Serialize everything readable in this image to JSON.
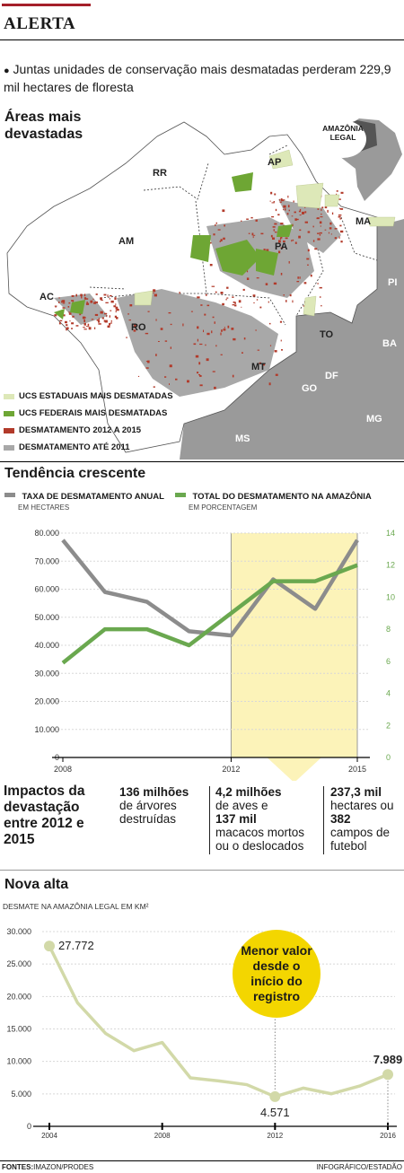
{
  "header": {
    "section": "ALERTA",
    "lede_bullet": "●",
    "lede": "Juntas unidades de conservação mais desmatadas perderam 229,9 mil hectares de floresta"
  },
  "map": {
    "title_line1": "Áreas mais",
    "title_line2": "devastadas",
    "inset_label_line1": "AMAZÔNIA",
    "inset_label_line2": "LEGAL",
    "states": [
      "RR",
      "AP",
      "AM",
      "PA",
      "MA",
      "AC",
      "PI",
      "RO",
      "TO",
      "BA",
      "MT",
      "DF",
      "GO",
      "MG",
      "MS"
    ],
    "legend": [
      {
        "label": "UCS ESTADUAIS MAIS DESMATADAS",
        "color": "#dde8b8"
      },
      {
        "label": "UCS FEDERAIS MAIS DESMATADAS",
        "color": "#6ea634"
      },
      {
        "label": "DESMATAMENTO 2012 A 2015",
        "color": "#b23a2a"
      },
      {
        "label": "DESMATAMENTO ATÉ 2011",
        "color": "#a8a8a8"
      }
    ],
    "colors": {
      "land": "#ffffff",
      "neighbors": "#9a9a9a",
      "border": "#444444"
    }
  },
  "trend": {
    "title": "Tendência crescente",
    "legend_left_label": "TAXA DE DESMATAMENTO ANUAL",
    "legend_left_sub": "EM HECTARES",
    "legend_right_label": "TOTAL DO DESMATAMENTO NA AMAZÔNIA",
    "legend_right_sub": "EM PORCENTAGEM"
  },
  "impacts": {
    "title": "Impactos da devastação entre 2012 e 2015",
    "col1_num": "136 milhões",
    "col1_text": "de árvores destruídas",
    "col2_num1": "4,2 milhões",
    "col2_text1": "de aves e",
    "col2_num2": "137 mil",
    "col2_text2": "macacos mortos ou o deslocados",
    "col3_num1": "237,3 mil",
    "col3_text1": "hectares ou",
    "col3_num2": "382",
    "col3_text2": "campos de futebol"
  },
  "alta": {
    "title": "Nova alta",
    "subtitle": "DESMATE NA AMAZÔNIA LEGAL EM KM²",
    "callout": "Menor valor desde o início do registro"
  },
  "footer": {
    "sources_label": "FONTES:",
    "sources": "IMAZON/PRODES",
    "credit": "INFOGRÁFICO/ESTADÃO"
  },
  "chart_data": [
    {
      "type": "line",
      "title": "Tendência crescente",
      "x": [
        2008,
        2009,
        2010,
        2011,
        2012,
        2013,
        2014,
        2015
      ],
      "xticks": [
        "2008",
        "2012",
        "2015"
      ],
      "highlight_range": [
        2012,
        2015
      ],
      "series": [
        {
          "name": "TAXA DE DESMATAMENTO ANUAL",
          "axis": "left",
          "unit": "EM HECTARES",
          "color": "#8c8c8c",
          "values": [
            77500,
            59000,
            55500,
            45000,
            43500,
            63500,
            53000,
            77500
          ]
        },
        {
          "name": "TOTAL DO DESMATAMENTO NA AMAZÔNIA",
          "axis": "right",
          "unit": "EM PORCENTAGEM",
          "color": "#6aa84f",
          "values": [
            5.9,
            8,
            8,
            7,
            9,
            11,
            11,
            12
          ]
        }
      ],
      "ylim_left": [
        0,
        80000
      ],
      "yticks_left": [
        "0",
        "10.000",
        "20.000",
        "30.000",
        "40.000",
        "50.000",
        "60.000",
        "70.000",
        "80.000"
      ],
      "ylim_right": [
        0,
        14
      ],
      "yticks_right": [
        "0",
        "2",
        "4",
        "6",
        "8",
        "10",
        "12",
        "14"
      ]
    },
    {
      "type": "line",
      "title": "Nova alta",
      "ylabel": "DESMATE NA AMAZÔNIA LEGAL EM KM²",
      "x": [
        2004,
        2005,
        2006,
        2007,
        2008,
        2009,
        2010,
        2011,
        2012,
        2013,
        2014,
        2015,
        2016
      ],
      "values": [
        27772,
        19014,
        14286,
        11651,
        12911,
        7464,
        7000,
        6418,
        4571,
        5891,
        5012,
        6207,
        7989
      ],
      "data_labels": {
        "2004": "27.772",
        "2012": "4.571",
        "2016": "7.989"
      },
      "xticks": [
        "2004",
        "2008",
        "2012",
        "2016"
      ],
      "ylim": [
        0,
        30000
      ],
      "yticks": [
        "0",
        "5.000",
        "10.000",
        "15.000",
        "20.000",
        "25.000",
        "30.000"
      ],
      "color": "#d2d9a8"
    }
  ]
}
